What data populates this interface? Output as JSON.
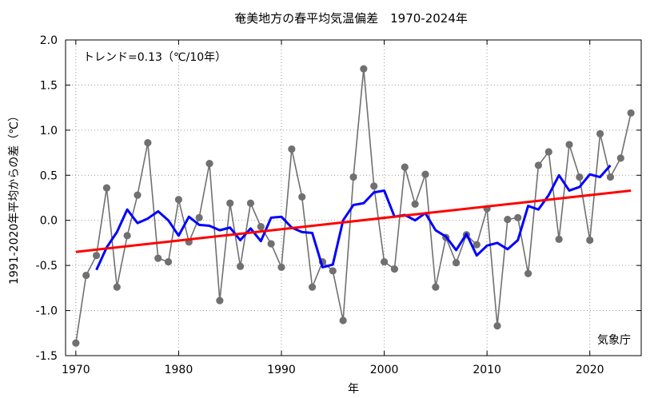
{
  "chart_data": {
    "type": "line",
    "title": "奄美地方の春平均気温偏差　1970-2024年",
    "xlabel": "年",
    "ylabel": "1991-2020年平均からの差（℃）",
    "trend_label": "トレンド=0.13（℃/10年）",
    "source_label": "気象庁",
    "xlim": [
      1969,
      2025
    ],
    "ylim": [
      -1.5,
      2.0
    ],
    "x_ticks": [
      1970,
      1980,
      1990,
      2000,
      2010,
      2020
    ],
    "y_ticks": [
      -1.5,
      -1.0,
      -0.5,
      0.0,
      0.5,
      1.0,
      1.5,
      2.0
    ],
    "y_tick_labels": [
      "-1.5",
      "-1.0",
      "-0.5",
      "0.0",
      "0.5",
      "1.0",
      "1.5",
      "2.0"
    ],
    "grid": true,
    "series": [
      {
        "color": "#707070",
        "x": [
          1970,
          1971,
          1972,
          1973,
          1974,
          1975,
          1976,
          1977,
          1978,
          1979,
          1980,
          1981,
          1982,
          1983,
          1984,
          1985,
          1986,
          1987,
          1988,
          1989,
          1990,
          1991,
          1992,
          1993,
          1994,
          1995,
          1996,
          1997,
          1998,
          1999,
          2000,
          2001,
          2002,
          2003,
          2004,
          2005,
          2006,
          2007,
          2008,
          2009,
          2010,
          2011,
          2012,
          2013,
          2014,
          2015,
          2016,
          2017,
          2018,
          2019,
          2020,
          2021,
          2022,
          2023,
          2024
        ],
        "values": [
          -1.36,
          -0.61,
          -0.39,
          0.36,
          -0.74,
          -0.17,
          0.28,
          0.86,
          -0.42,
          -0.46,
          0.23,
          -0.24,
          0.03,
          0.63,
          -0.89,
          0.19,
          -0.51,
          0.19,
          -0.07,
          -0.26,
          -0.52,
          0.79,
          0.26,
          -0.74,
          -0.46,
          -0.56,
          -1.11,
          0.48,
          1.68,
          0.38,
          -0.46,
          -0.54,
          0.59,
          0.18,
          0.51,
          -0.74,
          -0.19,
          -0.47,
          -0.16,
          -0.27,
          0.13,
          -1.17,
          0.01,
          0.03,
          -0.59,
          0.61,
          0.76,
          -0.21,
          0.84,
          0.48,
          -0.22,
          0.96,
          0.48,
          0.69,
          1.19
        ]
      },
      {
        "color": "#0000ff",
        "x": [
          1972,
          1973,
          1974,
          1975,
          1976,
          1977,
          1978,
          1979,
          1980,
          1981,
          1982,
          1983,
          1984,
          1985,
          1986,
          1987,
          1988,
          1989,
          1990,
          1991,
          1992,
          1993,
          1994,
          1995,
          1996,
          1997,
          1998,
          1999,
          2000,
          2001,
          2002,
          2003,
          2004,
          2005,
          2006,
          2007,
          2008,
          2009,
          2010,
          2011,
          2012,
          2013,
          2014,
          2015,
          2016,
          2017,
          2018,
          2019,
          2020,
          2021,
          2022
        ],
        "values": [
          -0.55,
          -0.3,
          -0.13,
          0.12,
          -0.03,
          0.02,
          0.1,
          0.0,
          -0.17,
          0.04,
          -0.05,
          -0.06,
          -0.11,
          -0.08,
          -0.22,
          -0.09,
          -0.23,
          0.03,
          0.04,
          -0.08,
          -0.13,
          -0.14,
          -0.52,
          -0.49,
          0.0,
          0.17,
          0.19,
          0.31,
          0.33,
          0.04,
          0.06,
          0.0,
          0.08,
          -0.11,
          -0.18,
          -0.33,
          -0.15,
          -0.39,
          -0.28,
          -0.25,
          -0.32,
          -0.22,
          0.16,
          0.12,
          0.28,
          0.5,
          0.33,
          0.37,
          0.51,
          0.48,
          0.61
        ]
      },
      {
        "color": "#ff0000",
        "x": [
          1970,
          2024
        ],
        "values": [
          -0.35,
          0.33
        ]
      }
    ]
  }
}
